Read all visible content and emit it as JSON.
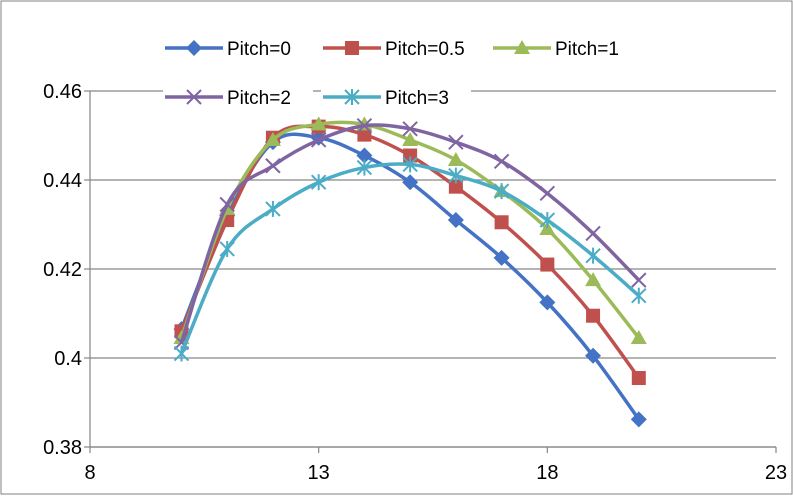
{
  "chart_data": {
    "type": "line",
    "title": "",
    "xlabel": "",
    "ylabel": "",
    "xlim": [
      8,
      23
    ],
    "ylim": [
      0.38,
      0.46
    ],
    "xticks": [
      8,
      13,
      18,
      23
    ],
    "yticks": [
      0.38,
      0.4,
      0.42,
      0.44,
      0.46
    ],
    "xtick_labels": [
      "8",
      "13",
      "18",
      "23"
    ],
    "ytick_labels": [
      "0.38",
      "0.4",
      "0.42",
      "0.44",
      "0.46"
    ],
    "grid": "horizontal",
    "legend_position": "top",
    "x": [
      10,
      11,
      12,
      13,
      14,
      15,
      16,
      17,
      18,
      19,
      20
    ],
    "series": [
      {
        "name": "Pitch=0",
        "color": "#4472C4",
        "marker": "diamond",
        "values": [
          0.4065,
          0.432,
          0.4485,
          0.4495,
          0.4455,
          0.4395,
          0.431,
          0.4225,
          0.4125,
          0.4005,
          0.3862
        ]
      },
      {
        "name": "Pitch=0.5",
        "color": "#C0504D",
        "marker": "square",
        "values": [
          0.406,
          0.431,
          0.4495,
          0.452,
          0.4502,
          0.4455,
          0.4385,
          0.4305,
          0.421,
          0.4095,
          0.3955
        ]
      },
      {
        "name": "Pitch=1",
        "color": "#9BBB59",
        "marker": "triangle",
        "values": [
          0.4045,
          0.4335,
          0.449,
          0.4525,
          0.4525,
          0.449,
          0.4445,
          0.4375,
          0.429,
          0.4175,
          0.4045
        ]
      },
      {
        "name": "Pitch=2",
        "color": "#8064A2",
        "marker": "x",
        "values": [
          0.4035,
          0.4345,
          0.4432,
          0.449,
          0.4522,
          0.4515,
          0.4485,
          0.4442,
          0.437,
          0.428,
          0.4175
        ]
      },
      {
        "name": "Pitch=3",
        "color": "#4BACC6",
        "marker": "asterisk",
        "values": [
          0.401,
          0.4245,
          0.4335,
          0.4395,
          0.4428,
          0.4435,
          0.441,
          0.4375,
          0.431,
          0.423,
          0.414
        ]
      }
    ]
  }
}
